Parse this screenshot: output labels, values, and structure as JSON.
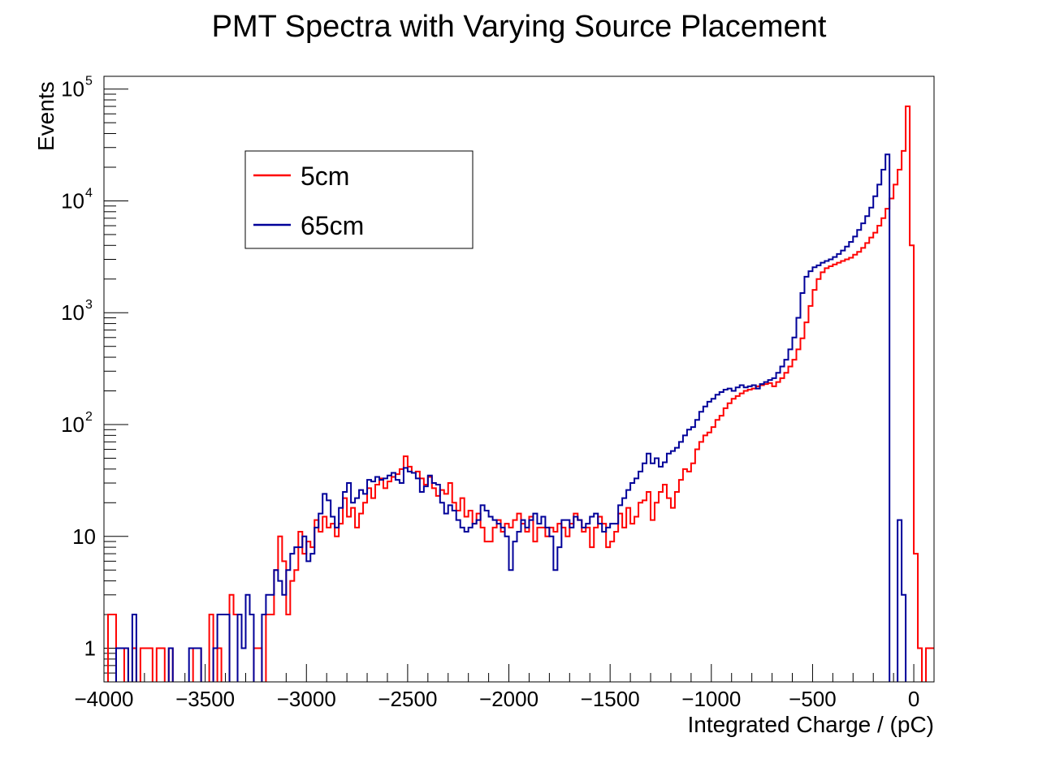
{
  "chart_data": {
    "type": "line",
    "step": true,
    "title": "PMT Spectra with Varying Source Placement",
    "xlabel": "Integrated Charge / (pC)",
    "ylabel": "Events",
    "xlim": [
      -4000,
      100
    ],
    "ylim": [
      0.5,
      130000
    ],
    "yscale": "log",
    "grid": false,
    "legend_placement": "top-left",
    "x_ticks": [
      -4000,
      -3500,
      -3000,
      -2500,
      -2000,
      -1500,
      -1000,
      -500,
      0
    ],
    "x_tick_labels": [
      "−4000",
      "−3500",
      "−3000",
      "−2500",
      "−2000",
      "−1500",
      "−1000",
      "−500",
      "0"
    ],
    "y_ticks": [
      {
        "value": 1,
        "base": "1",
        "exp": ""
      },
      {
        "value": 10,
        "base": "10",
        "exp": ""
      },
      {
        "value": 100,
        "base": "10",
        "exp": "2"
      },
      {
        "value": 1000,
        "base": "10",
        "exp": "3"
      },
      {
        "value": 10000,
        "base": "10",
        "exp": "4"
      },
      {
        "value": 100000,
        "base": "10",
        "exp": "5"
      }
    ],
    "bin_width": 20,
    "series": [
      {
        "name": "5cm",
        "color": "#ff0000",
        "x_start": -4000,
        "values": [
          0,
          2,
          2,
          0,
          0,
          1,
          0,
          1,
          0,
          1,
          1,
          1,
          0,
          1,
          1,
          0,
          1,
          0,
          0,
          0,
          0,
          0,
          1,
          1,
          0,
          0,
          2,
          0,
          1,
          0,
          0,
          3,
          2,
          0,
          0,
          0,
          0,
          1,
          1,
          0,
          2,
          2,
          5,
          10,
          6,
          2,
          4,
          5,
          11,
          7,
          9,
          8,
          14,
          11,
          15,
          12,
          13,
          10,
          13,
          22,
          15,
          18,
          12,
          16,
          20,
          27,
          22,
          29,
          33,
          27,
          31,
          34,
          36,
          40,
          52,
          42,
          37,
          38,
          33,
          29,
          34,
          27,
          23,
          26,
          24,
          30,
          20,
          17,
          22,
          15,
          17,
          13,
          16,
          12,
          9,
          9,
          12,
          14,
          11,
          13,
          12,
          14,
          16,
          13,
          11,
          15,
          9,
          12,
          12,
          10,
          12,
          11,
          13,
          12,
          10,
          13,
          16,
          14,
          11,
          12,
          8,
          12,
          15,
          13,
          8,
          9,
          11,
          16,
          12,
          18,
          13,
          15,
          20,
          21,
          25,
          14,
          20,
          25,
          29,
          22,
          18,
          25,
          32,
          40,
          38,
          45,
          60,
          70,
          80,
          85,
          95,
          110,
          120,
          140,
          155,
          170,
          180,
          190,
          200,
          205,
          210,
          220,
          225,
          230,
          235,
          220,
          240,
          260,
          290,
          330,
          380,
          470,
          590,
          820,
          1150,
          1600,
          2000,
          2300,
          2500,
          2600,
          2700,
          2800,
          2900,
          3000,
          3100,
          3300,
          3500,
          3800,
          4200,
          4700,
          5200,
          6000,
          7000,
          8500,
          10500,
          14000,
          19000,
          28000,
          70000,
          4000,
          7,
          1,
          0,
          1,
          1
        ]
      },
      {
        "name": "65cm",
        "color": "#000099",
        "x_start": -4000,
        "values": [
          0,
          0,
          0,
          1,
          1,
          1,
          0,
          2,
          0,
          0,
          0,
          0,
          0,
          0,
          0,
          0,
          1,
          0,
          0,
          0,
          0,
          1,
          1,
          1,
          0,
          0,
          0,
          1,
          2,
          2,
          2,
          0,
          0,
          2,
          1,
          3,
          2,
          0,
          0,
          2,
          3,
          3,
          5,
          4,
          3,
          5,
          7,
          8,
          8,
          10,
          6,
          7,
          12,
          16,
          24,
          21,
          15,
          12,
          18,
          25,
          30,
          20,
          22,
          26,
          24,
          32,
          31,
          34,
          32,
          33,
          35,
          37,
          32,
          30,
          41,
          38,
          37,
          33,
          25,
          28,
          35,
          30,
          29,
          20,
          16,
          19,
          17,
          14,
          12,
          11,
          12,
          13,
          14,
          19,
          17,
          15,
          14,
          13,
          12,
          10,
          5,
          9,
          11,
          14,
          12,
          14,
          16,
          13,
          15,
          12,
          10,
          5,
          8,
          14,
          14,
          12,
          15,
          14,
          12,
          13,
          15,
          16,
          13,
          11,
          12,
          13,
          13,
          19,
          22,
          26,
          30,
          33,
          38,
          45,
          55,
          45,
          50,
          42,
          46,
          55,
          58,
          62,
          70,
          80,
          90,
          95,
          110,
          130,
          145,
          160,
          170,
          185,
          195,
          205,
          210,
          200,
          215,
          225,
          215,
          220,
          225,
          210,
          230,
          240,
          250,
          260,
          290,
          330,
          380,
          470,
          600,
          900,
          1500,
          2100,
          2350,
          2550,
          2650,
          2800,
          2900,
          3000,
          3150,
          3350,
          3600,
          3900,
          4300,
          4800,
          5500,
          6300,
          7300,
          8700,
          11000,
          14000,
          19000,
          26000,
          0,
          0,
          14,
          3,
          0,
          0,
          0,
          0
        ]
      }
    ]
  }
}
